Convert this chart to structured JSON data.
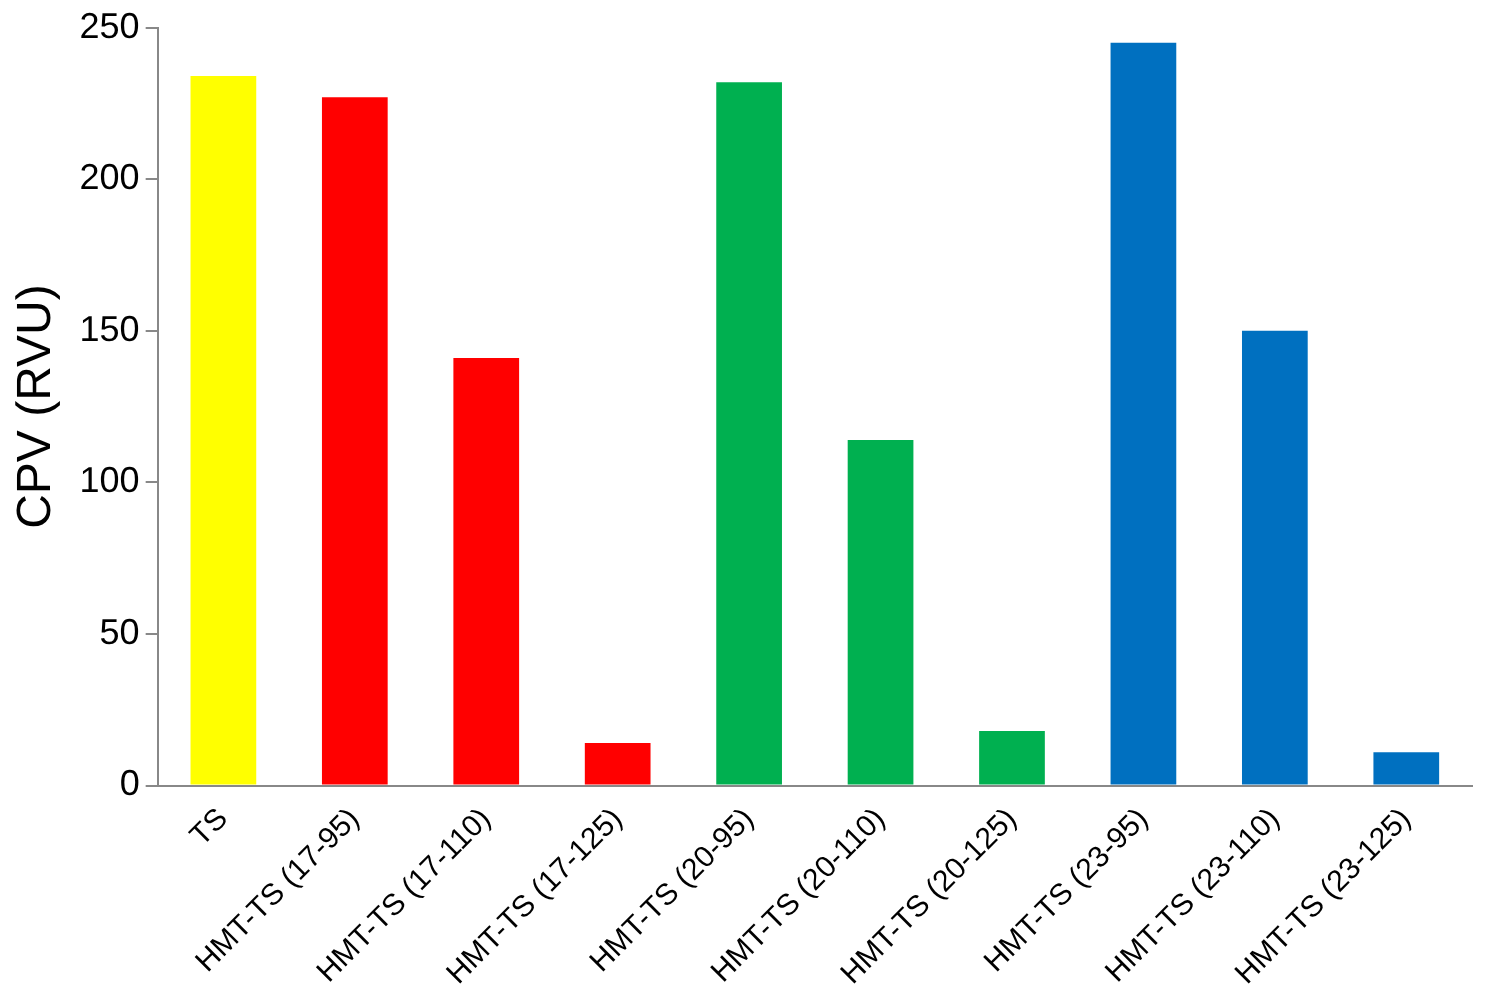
{
  "chart_data": {
    "type": "bar",
    "ylabel": "CPV (RVU)",
    "categories": [
      "TS",
      "HMT-TS (17-95)",
      "HMT-TS (17-110)",
      "HMT-TS (17-125)",
      "HMT-TS (20-95)",
      "HMT-TS (20-110)",
      "HMT-TS (20-125)",
      "HMT-TS (23-95)",
      "HMT-TS (23-110)",
      "HMT-TS (23-125)"
    ],
    "values": [
      234,
      227,
      141,
      14,
      232,
      114,
      18,
      245,
      150,
      11
    ],
    "colors": [
      "#ffff00",
      "#ff0000",
      "#ff0000",
      "#ff0000",
      "#00b050",
      "#00b050",
      "#00b050",
      "#0070c0",
      "#0070c0",
      "#0070c0"
    ],
    "ylim": [
      0,
      250
    ],
    "yticks": [
      0,
      50,
      100,
      150,
      200,
      250
    ],
    "grid": false,
    "legend": false
  }
}
